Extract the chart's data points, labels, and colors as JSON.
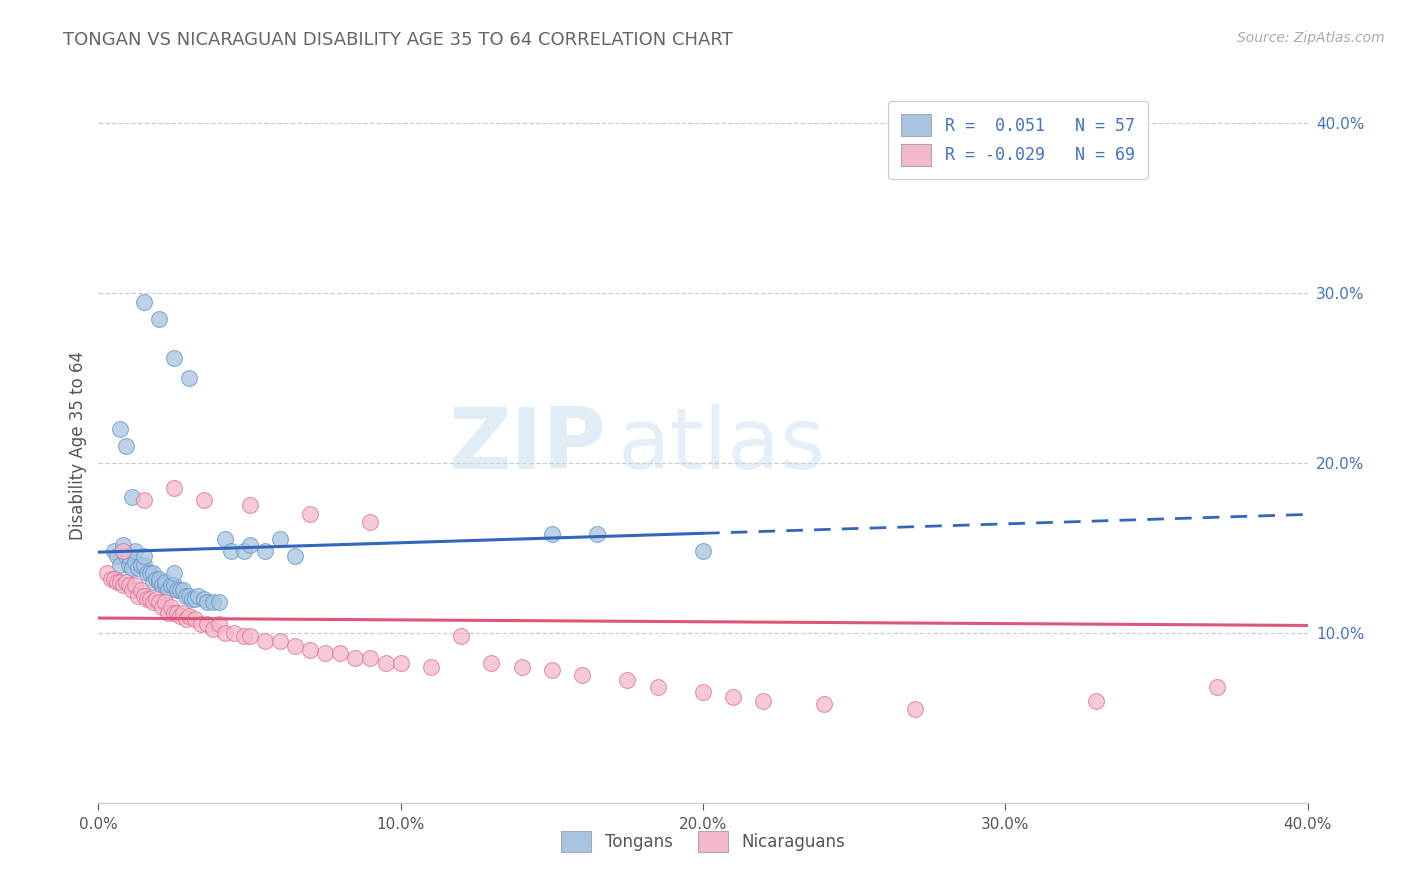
{
  "title": "TONGAN VS NICARAGUAN DISABILITY AGE 35 TO 64 CORRELATION CHART",
  "source": "Source: ZipAtlas.com",
  "ylabel": "Disability Age 35 to 64",
  "xlim": [
    0.0,
    0.4
  ],
  "ylim": [
    0.0,
    0.4
  ],
  "ytick_vals": [
    0.1,
    0.2,
    0.3,
    0.4
  ],
  "xtick_vals": [
    0.0,
    0.1,
    0.2,
    0.3,
    0.4
  ],
  "legend_line1": "R =  0.051   N = 57",
  "legend_line2": "R = -0.029   N = 69",
  "tongan_color": "#a8c4e0",
  "tongan_edge": "#6699cc",
  "nicaraguan_color": "#f4b8cc",
  "nicaraguan_edge": "#dd7799",
  "tongan_line_color": "#3366bb",
  "nicaraguan_line_color": "#dd5577",
  "background": "#ffffff",
  "watermark_zip": "ZIP",
  "watermark_atlas": "atlas",
  "tongan_x": [
    0.005,
    0.006,
    0.007,
    0.008,
    0.009,
    0.01,
    0.01,
    0.011,
    0.012,
    0.012,
    0.013,
    0.014,
    0.015,
    0.015,
    0.016,
    0.017,
    0.018,
    0.018,
    0.019,
    0.02,
    0.02,
    0.021,
    0.022,
    0.022,
    0.023,
    0.024,
    0.025,
    0.025,
    0.026,
    0.027,
    0.028,
    0.029,
    0.03,
    0.031,
    0.032,
    0.033,
    0.035,
    0.036,
    0.038,
    0.04,
    0.042,
    0.044,
    0.048,
    0.05,
    0.055,
    0.06,
    0.065,
    0.007,
    0.009,
    0.011,
    0.15,
    0.165,
    0.2,
    0.015,
    0.02,
    0.025,
    0.03
  ],
  "tongan_y": [
    0.148,
    0.145,
    0.14,
    0.152,
    0.145,
    0.14,
    0.145,
    0.138,
    0.142,
    0.148,
    0.138,
    0.14,
    0.14,
    0.145,
    0.135,
    0.135,
    0.135,
    0.13,
    0.132,
    0.13,
    0.132,
    0.128,
    0.128,
    0.13,
    0.125,
    0.128,
    0.128,
    0.135,
    0.125,
    0.125,
    0.125,
    0.122,
    0.122,
    0.12,
    0.12,
    0.122,
    0.12,
    0.118,
    0.118,
    0.118,
    0.155,
    0.148,
    0.148,
    0.152,
    0.148,
    0.155,
    0.145,
    0.22,
    0.21,
    0.18,
    0.158,
    0.158,
    0.148,
    0.295,
    0.285,
    0.262,
    0.25
  ],
  "nicaraguan_x": [
    0.003,
    0.004,
    0.005,
    0.006,
    0.007,
    0.008,
    0.009,
    0.01,
    0.011,
    0.012,
    0.013,
    0.014,
    0.015,
    0.016,
    0.017,
    0.018,
    0.019,
    0.02,
    0.021,
    0.022,
    0.023,
    0.024,
    0.025,
    0.026,
    0.027,
    0.028,
    0.029,
    0.03,
    0.032,
    0.034,
    0.036,
    0.038,
    0.04,
    0.042,
    0.045,
    0.048,
    0.05,
    0.055,
    0.06,
    0.065,
    0.07,
    0.075,
    0.08,
    0.085,
    0.09,
    0.095,
    0.1,
    0.11,
    0.12,
    0.13,
    0.14,
    0.15,
    0.16,
    0.175,
    0.185,
    0.2,
    0.21,
    0.22,
    0.24,
    0.008,
    0.015,
    0.025,
    0.035,
    0.05,
    0.07,
    0.09,
    0.27,
    0.33,
    0.37
  ],
  "nicaraguan_y": [
    0.135,
    0.132,
    0.132,
    0.13,
    0.13,
    0.128,
    0.13,
    0.128,
    0.125,
    0.128,
    0.122,
    0.125,
    0.122,
    0.12,
    0.12,
    0.118,
    0.12,
    0.118,
    0.115,
    0.118,
    0.112,
    0.115,
    0.112,
    0.112,
    0.11,
    0.112,
    0.108,
    0.11,
    0.108,
    0.105,
    0.105,
    0.102,
    0.105,
    0.1,
    0.1,
    0.098,
    0.098,
    0.095,
    0.095,
    0.092,
    0.09,
    0.088,
    0.088,
    0.085,
    0.085,
    0.082,
    0.082,
    0.08,
    0.098,
    0.082,
    0.08,
    0.078,
    0.075,
    0.072,
    0.068,
    0.065,
    0.062,
    0.06,
    0.058,
    0.148,
    0.178,
    0.185,
    0.178,
    0.175,
    0.17,
    0.165,
    0.055,
    0.06,
    0.068
  ],
  "tongan_line_solid_end": 0.2,
  "tongan_line_dashed_start": 0.2
}
